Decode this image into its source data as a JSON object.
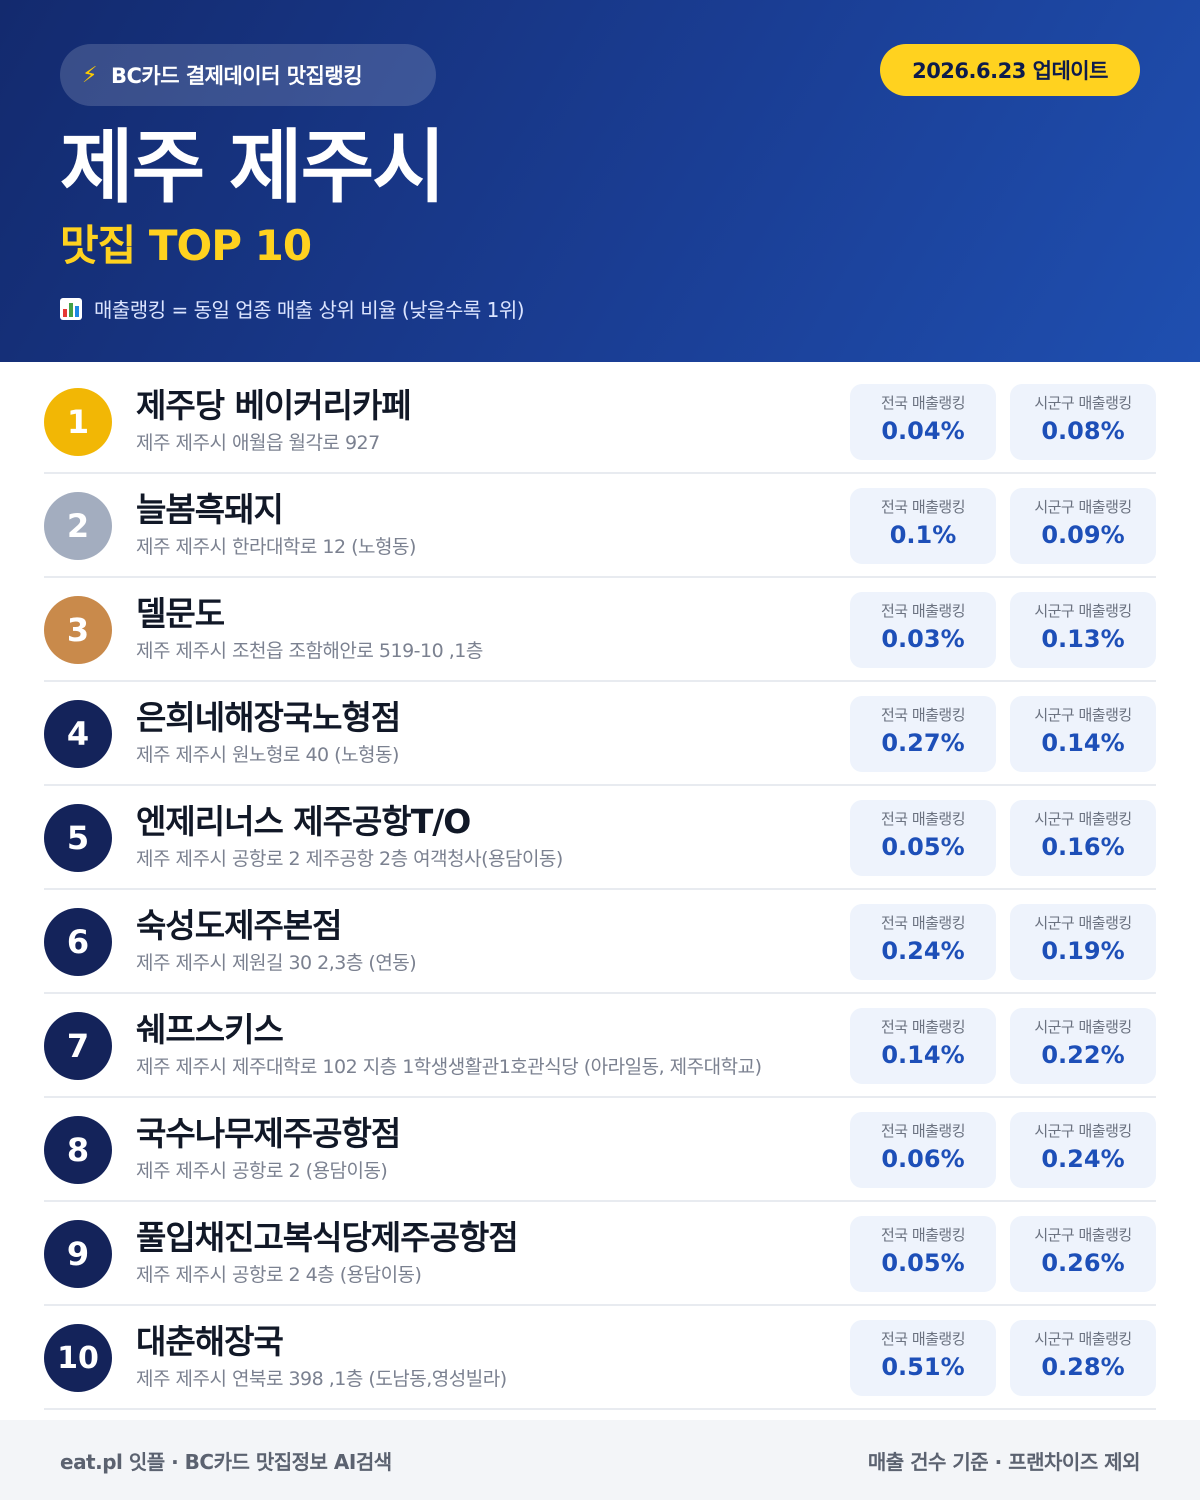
{
  "header": {
    "source_label": "BC카드 결제데이터 맛집랭킹",
    "update_label": "2026.6.23 업데이트",
    "title": "제주 제주시",
    "subtitle": "맛집 TOP 10",
    "legend": "매출랭킹 = 동일 업종 매출 상위 비율 (낮을수록 1위)"
  },
  "stat_labels": {
    "national": "전국 매출랭킹",
    "local": "시군구 매출랭킹"
  },
  "rank_colors": {
    "gold": "#f2b705",
    "silver": "#a3adbf",
    "bronze": "#c98a4b",
    "default": "#14235a"
  },
  "restaurants": [
    {
      "rank": "1",
      "name": "제주당 베이커리카페",
      "address": "제주 제주시 애월읍 월각로 927",
      "national": "0.04%",
      "local": "0.08%"
    },
    {
      "rank": "2",
      "name": "늘봄흑돼지",
      "address": "제주 제주시 한라대학로 12 (노형동)",
      "national": "0.1%",
      "local": "0.09%"
    },
    {
      "rank": "3",
      "name": "델문도",
      "address": "제주 제주시 조천읍 조함해안로 519-10 ,1층",
      "national": "0.03%",
      "local": "0.13%"
    },
    {
      "rank": "4",
      "name": "은희네해장국노형점",
      "address": "제주 제주시 원노형로 40 (노형동)",
      "national": "0.27%",
      "local": "0.14%"
    },
    {
      "rank": "5",
      "name": "엔제리너스 제주공항T/O",
      "address": "제주 제주시 공항로 2 제주공항 2층 여객청사(용담이동)",
      "national": "0.05%",
      "local": "0.16%"
    },
    {
      "rank": "6",
      "name": "숙성도제주본점",
      "address": "제주 제주시 제원길 30 2,3층 (연동)",
      "national": "0.24%",
      "local": "0.19%"
    },
    {
      "rank": "7",
      "name": "쉐프스키스",
      "address": "제주 제주시 제주대학로 102 지층 1학생생활관1호관식당 (아라일동, 제주대학교)",
      "national": "0.14%",
      "local": "0.22%"
    },
    {
      "rank": "8",
      "name": "국수나무제주공항점",
      "address": "제주 제주시 공항로 2 (용담이동)",
      "national": "0.06%",
      "local": "0.24%"
    },
    {
      "rank": "9",
      "name": "풀입채진고복식당제주공항점",
      "address": "제주 제주시 공항로 2 4층 (용담이동)",
      "national": "0.05%",
      "local": "0.26%"
    },
    {
      "rank": "10",
      "name": "대춘해장국",
      "address": "제주 제주시 연북로 398 ,1층 (도남동,영성빌라)",
      "national": "0.51%",
      "local": "0.28%"
    }
  ],
  "footer": {
    "left": "eat.pl 잇플 · BC카드 맛집정보 AI검색",
    "right": "매출 건수 기준 · 프랜차이즈 제외"
  }
}
